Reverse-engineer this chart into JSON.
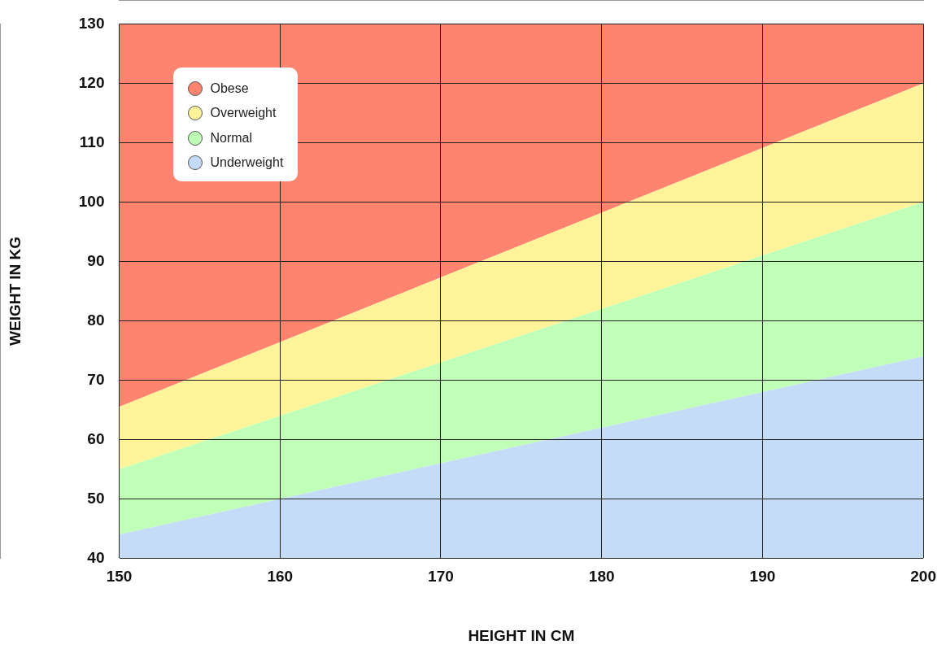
{
  "chart_data": {
    "type": "area",
    "xlabel": "HEIGHT IN CM",
    "ylabel": "WEIGHT IN KG",
    "x": [
      150,
      200
    ],
    "series": [
      {
        "name": "Underweight",
        "color": "#c5dcf7",
        "values": [
          44,
          74
        ]
      },
      {
        "name": "Normal",
        "color": "#bfffb8",
        "values": [
          55,
          100
        ]
      },
      {
        "name": "Overweight",
        "color": "#fff49a",
        "values": [
          65.5,
          120
        ]
      },
      {
        "name": "Obese",
        "color": "#ff846f",
        "values": [
          130,
          130
        ]
      }
    ],
    "xlim": [
      150,
      200
    ],
    "ylim": [
      40,
      130
    ],
    "xticks": [
      150,
      160,
      170,
      180,
      190,
      200
    ],
    "yticks": [
      40,
      50,
      60,
      70,
      80,
      90,
      100,
      110,
      120,
      130
    ],
    "grid": true,
    "legend": "top left",
    "marker": "none"
  }
}
